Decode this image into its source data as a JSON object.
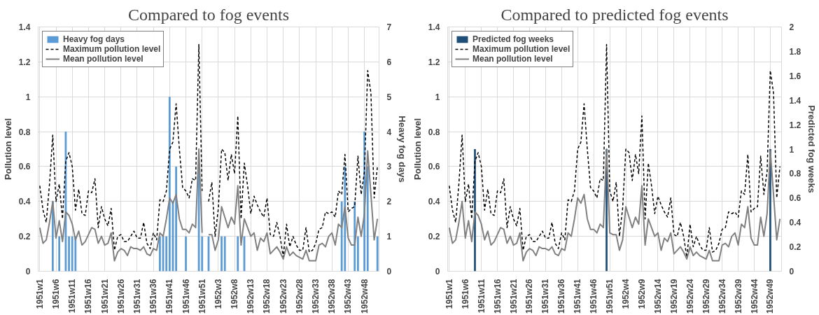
{
  "chart_data": [
    {
      "type": "line",
      "title": "Compared to fog events",
      "ylabel": "Pollution level",
      "y2label": "Heavy fog days",
      "categories": [
        "1951w1",
        null,
        null,
        null,
        null,
        "1951w6",
        null,
        null,
        null,
        null,
        "1951w11",
        null,
        null,
        null,
        null,
        "1951w16",
        null,
        null,
        null,
        null,
        "1951w21",
        null,
        null,
        null,
        null,
        "1951w26",
        null,
        null,
        null,
        null,
        "1951w31",
        null,
        null,
        null,
        null,
        "1951w36",
        null,
        null,
        null,
        null,
        "1951w41",
        null,
        null,
        null,
        null,
        "1951w46",
        null,
        null,
        null,
        null,
        "1951w51",
        null,
        null,
        null,
        null,
        "1952w3",
        null,
        null,
        null,
        null,
        "1952w8",
        null,
        null,
        null,
        null,
        "1952w13",
        null,
        null,
        null,
        null,
        "1952w18",
        null,
        null,
        null,
        null,
        "1952w23",
        null,
        null,
        null,
        null,
        "1952w28",
        null,
        null,
        null,
        null,
        "1952w33",
        null,
        null,
        null,
        null,
        "1952w38",
        null,
        null,
        null,
        null,
        "1952w43",
        null,
        null,
        null,
        null,
        "1952w48",
        null,
        null,
        null,
        null
      ],
      "series": [
        {
          "name": "Heavy fog days",
          "type": "bar",
          "axis": "y2",
          "color": "#5b9bd5",
          "values": [
            null,
            null,
            null,
            null,
            2,
            null,
            1,
            null,
            4,
            1,
            1,
            1,
            null,
            null,
            null,
            null,
            null,
            null,
            null,
            null,
            null,
            null,
            null,
            null,
            null,
            null,
            null,
            null,
            null,
            null,
            null,
            null,
            null,
            null,
            null,
            null,
            null,
            1,
            1,
            1,
            5,
            2,
            3,
            null,
            null,
            1,
            null,
            null,
            null,
            3,
            1,
            null,
            1,
            null,
            null,
            null,
            1,
            1,
            null,
            null,
            null,
            1,
            null,
            1,
            null,
            null,
            null,
            null,
            null,
            null,
            null,
            null,
            null,
            null,
            null,
            null,
            null,
            null,
            null,
            null,
            null,
            null,
            null,
            null,
            null,
            null,
            null,
            null,
            null,
            null,
            null,
            null,
            null,
            2,
            3,
            null,
            null,
            2,
            1,
            null,
            4,
            3,
            null,
            null,
            1
          ]
        },
        {
          "name": "Maximum pollution level",
          "line_style": "dashed",
          "color": "#000000",
          "values": [
            0.49,
            0.35,
            0.28,
            0.5,
            0.78,
            0.4,
            0.5,
            0.3,
            0.63,
            0.68,
            0.6,
            0.35,
            0.47,
            0.33,
            0.32,
            0.46,
            0.45,
            0.53,
            0.25,
            0.37,
            0.3,
            0.26,
            0.36,
            0.12,
            0.2,
            0.21,
            0.17,
            0.17,
            0.2,
            0.23,
            0.19,
            0.19,
            0.28,
            0.16,
            0.13,
            0.22,
            0.18,
            0.41,
            0.4,
            0.46,
            0.7,
            0.74,
            0.96,
            0.7,
            0.48,
            0.46,
            0.42,
            0.53,
            0.52,
            1.3,
            0.46,
            null,
            0.4,
            0.51,
            0.2,
            0.36,
            0.7,
            0.68,
            0.52,
            0.67,
            0.56,
            0.89,
            0.3,
            0.62,
            0.49,
            0.33,
            0.43,
            0.38,
            0.34,
            0.31,
            0.42,
            0.21,
            0.2,
            0.28,
            0.2,
            0.08,
            0.27,
            0.14,
            0.2,
            0.15,
            0.12,
            0.12,
            0.25,
            0.11,
            0.12,
            0.16,
            0.24,
            0.25,
            0.34,
            0.33,
            0.34,
            0.31,
            0.46,
            0.44,
            0.67,
            0.34,
            0.36,
            0.37,
            0.66,
            0.44,
            0.57,
            1.15,
            1.02,
            0.42,
            0.6
          ]
        },
        {
          "name": "Mean pollution level",
          "line_style": "solid",
          "color": "#808080",
          "values": [
            0.25,
            0.16,
            0.18,
            0.28,
            0.4,
            0.19,
            0.29,
            0.17,
            0.34,
            0.32,
            0.27,
            0.18,
            0.23,
            0.15,
            0.17,
            0.21,
            0.25,
            0.24,
            0.16,
            0.2,
            0.15,
            0.16,
            0.22,
            0.06,
            0.11,
            0.13,
            0.12,
            0.09,
            0.14,
            0.13,
            0.13,
            0.12,
            0.14,
            0.1,
            0.09,
            0.13,
            0.12,
            0.22,
            0.2,
            0.3,
            0.42,
            0.39,
            0.44,
            0.3,
            0.24,
            0.24,
            0.22,
            0.27,
            0.25,
            0.7,
            0.22,
            null,
            0.21,
            0.21,
            0.12,
            0.18,
            0.37,
            0.31,
            0.25,
            0.31,
            0.27,
            0.49,
            0.15,
            0.3,
            0.25,
            0.2,
            0.22,
            0.12,
            0.19,
            0.17,
            0.22,
            0.1,
            0.12,
            0.14,
            0.11,
            0.07,
            0.14,
            0.09,
            0.11,
            0.09,
            0.08,
            0.07,
            0.12,
            0.06,
            0.06,
            0.06,
            0.15,
            0.16,
            0.14,
            0.2,
            0.22,
            0.15,
            0.27,
            0.25,
            0.37,
            0.19,
            0.15,
            0.15,
            0.31,
            0.2,
            0.33,
            0.69,
            0.44,
            0.18,
            0.3
          ]
        }
      ],
      "ylim": [
        0,
        1.4
      ],
      "yticks": [
        0,
        0.2,
        0.4,
        0.6,
        0.8,
        1,
        1.2,
        1.4
      ],
      "y2lim": [
        0,
        7
      ],
      "y2ticks": [
        0,
        1,
        2,
        3,
        4,
        5,
        6,
        7
      ],
      "grid": true,
      "legend": "top left"
    },
    {
      "type": "line",
      "title": "Compared to predicted fog events",
      "ylabel": "Pollution level",
      "y2label": "Predicted fog weeks",
      "categories": [
        "1951w1",
        null,
        null,
        null,
        null,
        "1951w6",
        null,
        null,
        null,
        null,
        "1951w11",
        null,
        null,
        null,
        null,
        "1951w16",
        null,
        null,
        null,
        null,
        "1951w21",
        null,
        null,
        null,
        null,
        "1951w26",
        null,
        null,
        null,
        null,
        "1951w31",
        null,
        null,
        null,
        null,
        "1951w36",
        null,
        null,
        null,
        null,
        "1951w41",
        null,
        null,
        null,
        null,
        "1951w46",
        null,
        null,
        null,
        null,
        "1951w51",
        null,
        null,
        null,
        null,
        "1952w4",
        null,
        null,
        null,
        null,
        "1952w9",
        null,
        null,
        null,
        null,
        "1952w14",
        null,
        null,
        null,
        null,
        "1952w19",
        null,
        null,
        null,
        null,
        "1952w24",
        null,
        null,
        null,
        null,
        "1952w29",
        null,
        null,
        null,
        null,
        "1952w34",
        null,
        null,
        null,
        null,
        "1952w39",
        null,
        null,
        null,
        null,
        "1952w44",
        null,
        null,
        null,
        null,
        "1952w49",
        null,
        null,
        null
      ],
      "series": [
        {
          "name": "Predicted fog weeks",
          "type": "bar",
          "axis": "y2",
          "color": "#1f4e79",
          "values": [
            null,
            null,
            null,
            null,
            null,
            null,
            null,
            null,
            1,
            null,
            null,
            null,
            null,
            null,
            null,
            null,
            null,
            null,
            null,
            null,
            null,
            null,
            null,
            null,
            null,
            null,
            null,
            null,
            null,
            null,
            null,
            null,
            null,
            null,
            null,
            null,
            null,
            null,
            null,
            null,
            null,
            null,
            null,
            null,
            null,
            null,
            null,
            null,
            null,
            1,
            null,
            null,
            null,
            null,
            null,
            null,
            null,
            null,
            null,
            null,
            null,
            null,
            null,
            null,
            null,
            null,
            null,
            null,
            null,
            null,
            null,
            null,
            null,
            null,
            null,
            null,
            null,
            null,
            null,
            null,
            null,
            null,
            null,
            null,
            null,
            null,
            null,
            null,
            null,
            null,
            null,
            null,
            null,
            null,
            null,
            null,
            null,
            null,
            null,
            null,
            1,
            null,
            null,
            null
          ]
        },
        {
          "name": "Maximum pollution level",
          "line_style": "dashed",
          "color": "#000000",
          "values": [
            0.49,
            0.35,
            0.28,
            0.5,
            0.78,
            0.4,
            0.5,
            0.3,
            0.63,
            0.68,
            0.6,
            0.35,
            0.47,
            0.33,
            0.32,
            0.46,
            0.45,
            0.53,
            0.25,
            0.37,
            0.3,
            0.26,
            0.36,
            0.12,
            0.2,
            0.21,
            0.17,
            0.17,
            0.2,
            0.23,
            0.19,
            0.19,
            0.28,
            0.16,
            0.13,
            0.22,
            0.18,
            0.41,
            0.4,
            0.46,
            0.7,
            0.74,
            0.96,
            0.7,
            0.48,
            0.46,
            0.42,
            0.53,
            0.52,
            1.3,
            0.46,
            0.4,
            0.51,
            0.2,
            0.36,
            0.7,
            0.68,
            0.52,
            0.67,
            0.56,
            0.89,
            0.3,
            0.62,
            0.49,
            0.33,
            0.43,
            0.38,
            0.34,
            0.31,
            0.42,
            0.21,
            0.2,
            0.28,
            0.2,
            0.08,
            0.27,
            0.14,
            0.2,
            0.15,
            0.12,
            0.12,
            0.25,
            0.11,
            0.12,
            0.16,
            0.24,
            0.25,
            0.34,
            0.33,
            0.34,
            0.31,
            0.46,
            0.44,
            0.67,
            0.34,
            0.36,
            0.37,
            0.66,
            0.44,
            0.57,
            1.15,
            1.02,
            0.42,
            0.6
          ]
        },
        {
          "name": "Mean pollution level",
          "line_style": "solid",
          "color": "#808080",
          "values": [
            0.25,
            0.16,
            0.18,
            0.28,
            0.4,
            0.19,
            0.29,
            0.17,
            0.34,
            0.32,
            0.27,
            0.18,
            0.23,
            0.15,
            0.17,
            0.21,
            0.25,
            0.24,
            0.16,
            0.2,
            0.15,
            0.16,
            0.22,
            0.06,
            0.11,
            0.13,
            0.12,
            0.09,
            0.14,
            0.13,
            0.13,
            0.12,
            0.14,
            0.1,
            0.09,
            0.13,
            0.12,
            0.22,
            0.2,
            0.3,
            0.42,
            0.39,
            0.44,
            0.3,
            0.24,
            0.24,
            0.22,
            0.27,
            0.25,
            0.7,
            0.22,
            0.21,
            0.21,
            0.12,
            0.18,
            0.37,
            0.31,
            0.25,
            0.31,
            0.27,
            0.49,
            0.15,
            0.3,
            0.25,
            0.2,
            0.22,
            0.12,
            0.19,
            0.17,
            0.22,
            0.1,
            0.12,
            0.14,
            0.11,
            0.07,
            0.14,
            0.09,
            0.11,
            0.09,
            0.08,
            0.07,
            0.12,
            0.06,
            0.06,
            0.06,
            0.15,
            0.16,
            0.14,
            0.2,
            0.22,
            0.15,
            0.27,
            0.25,
            0.37,
            0.19,
            0.15,
            0.15,
            0.31,
            0.2,
            0.33,
            0.69,
            0.44,
            0.18,
            0.3
          ]
        }
      ],
      "ylim": [
        0,
        1.4
      ],
      "yticks": [
        0,
        0.2,
        0.4,
        0.6,
        0.8,
        1,
        1.2,
        1.4
      ],
      "y2lim": [
        0,
        2
      ],
      "y2ticks": [
        0,
        0.2,
        0.4,
        0.6,
        0.8,
        1,
        1.2,
        1.4,
        1.6,
        1.8,
        2
      ],
      "grid": true,
      "legend": "top left"
    }
  ]
}
